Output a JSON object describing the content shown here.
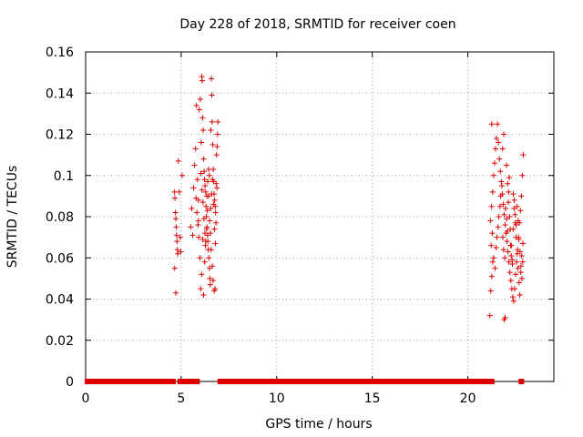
{
  "chart_data": {
    "type": "scatter",
    "title": "Day 228 of 2018, SRMTID for receiver coen",
    "xlabel": "GPS time / hours",
    "ylabel": "SRMTID / TECUs",
    "xlim": [
      0,
      24.5
    ],
    "ylim": [
      0,
      0.16
    ],
    "xticks": [
      0,
      5,
      10,
      15,
      20
    ],
    "xtick_labels": [
      "0",
      "5",
      "10",
      "15",
      "20"
    ],
    "yticks": [
      0,
      0.02,
      0.04,
      0.06,
      0.08,
      0.1,
      0.12,
      0.14,
      0.16
    ],
    "ytick_labels": [
      "0",
      "0.02",
      "0.04",
      "0.06",
      "0.08",
      "0.1",
      "0.12",
      "0.14",
      "0.16"
    ],
    "grid": true,
    "marker": "+",
    "color": "#dd0000",
    "series": [
      {
        "name": "SRMTID",
        "points": [
          [
            4.65,
            0.092
          ],
          [
            4.67,
            0.089
          ],
          [
            4.7,
            0.082
          ],
          [
            4.72,
            0.079
          ],
          [
            4.74,
            0.075
          ],
          [
            4.76,
            0.071
          ],
          [
            4.78,
            0.068
          ],
          [
            4.8,
            0.064
          ],
          [
            4.82,
            0.062
          ],
          [
            4.66,
            0.055
          ],
          [
            4.72,
            0.043
          ],
          [
            4.85,
            0.107
          ],
          [
            4.9,
            0.092
          ],
          [
            4.95,
            0.07
          ],
          [
            4.98,
            0.063
          ],
          [
            5.05,
            0.1
          ],
          [
            5.5,
            0.075
          ],
          [
            5.55,
            0.084
          ],
          [
            5.6,
            0.071
          ],
          [
            5.65,
            0.094
          ],
          [
            5.7,
            0.105
          ],
          [
            5.75,
            0.113
          ],
          [
            5.8,
            0.134
          ],
          [
            5.85,
            0.098
          ],
          [
            5.9,
            0.088
          ],
          [
            5.95,
            0.132
          ],
          [
            6.0,
            0.137
          ],
          [
            6.05,
            0.116
          ],
          [
            6.08,
            0.148
          ],
          [
            6.1,
            0.146
          ],
          [
            6.12,
            0.128
          ],
          [
            6.15,
            0.122
          ],
          [
            6.18,
            0.108
          ],
          [
            6.2,
            0.102
          ],
          [
            6.22,
            0.098
          ],
          [
            6.25,
            0.095
          ],
          [
            6.28,
            0.092
          ],
          [
            6.3,
            0.085
          ],
          [
            6.32,
            0.08
          ],
          [
            6.35,
            0.075
          ],
          [
            6.38,
            0.071
          ],
          [
            6.4,
            0.068
          ],
          [
            6.42,
            0.064
          ],
          [
            6.45,
            0.06
          ],
          [
            6.48,
            0.055
          ],
          [
            6.5,
            0.05
          ],
          [
            6.52,
            0.047
          ],
          [
            6.55,
            0.122
          ],
          [
            6.58,
            0.147
          ],
          [
            6.6,
            0.139
          ],
          [
            6.62,
            0.126
          ],
          [
            6.65,
            0.115
          ],
          [
            6.68,
            0.103
          ],
          [
            6.7,
            0.097
          ],
          [
            6.72,
            0.091
          ],
          [
            6.75,
            0.088
          ],
          [
            6.78,
            0.085
          ],
          [
            6.8,
            0.082
          ],
          [
            6.82,
            0.077
          ],
          [
            6.85,
            0.11
          ],
          [
            6.88,
            0.114
          ],
          [
            6.9,
            0.12
          ],
          [
            6.92,
            0.126
          ],
          [
            5.9,
            0.078
          ],
          [
            5.98,
            0.06
          ],
          [
            6.02,
            0.045
          ],
          [
            6.07,
            0.052
          ],
          [
            6.13,
            0.069
          ],
          [
            6.17,
            0.042
          ],
          [
            6.23,
            0.058
          ],
          [
            6.27,
            0.066
          ],
          [
            6.33,
            0.074
          ],
          [
            6.37,
            0.083
          ],
          [
            6.43,
            0.09
          ],
          [
            6.47,
            0.1
          ],
          [
            6.53,
            0.072
          ],
          [
            6.57,
            0.064
          ],
          [
            6.63,
            0.056
          ],
          [
            6.67,
            0.049
          ],
          [
            6.73,
            0.044
          ],
          [
            6.77,
            0.045
          ],
          [
            6.83,
            0.096
          ],
          [
            6.87,
            0.094
          ],
          [
            5.78,
            0.089
          ],
          [
            5.82,
            0.082
          ],
          [
            5.88,
            0.076
          ],
          [
            5.92,
            0.07
          ],
          [
            6.03,
            0.101
          ],
          [
            6.09,
            0.093
          ],
          [
            6.14,
            0.087
          ],
          [
            6.19,
            0.079
          ],
          [
            6.24,
            0.072
          ],
          [
            6.29,
            0.068
          ],
          [
            6.34,
            0.09
          ],
          [
            6.39,
            0.097
          ],
          [
            6.44,
            0.103
          ],
          [
            6.49,
            0.078
          ],
          [
            6.54,
            0.084
          ],
          [
            6.59,
            0.091
          ],
          [
            6.64,
            0.098
          ],
          [
            6.69,
            0.086
          ],
          [
            6.74,
            0.074
          ],
          [
            6.79,
            0.067
          ],
          [
            21.15,
            0.032
          ],
          [
            21.2,
            0.044
          ],
          [
            21.25,
            0.051
          ],
          [
            21.3,
            0.058
          ],
          [
            21.22,
            0.066
          ],
          [
            21.28,
            0.072
          ],
          [
            21.18,
            0.078
          ],
          [
            21.24,
            0.085
          ],
          [
            21.3,
            0.092
          ],
          [
            21.35,
            0.1
          ],
          [
            21.4,
            0.106
          ],
          [
            21.45,
            0.113
          ],
          [
            21.5,
            0.118
          ],
          [
            21.25,
            0.125
          ],
          [
            21.55,
            0.125
          ],
          [
            21.6,
            0.116
          ],
          [
            21.65,
            0.108
          ],
          [
            21.7,
            0.102
          ],
          [
            21.75,
            0.097
          ],
          [
            21.8,
            0.091
          ],
          [
            21.85,
            0.086
          ],
          [
            21.9,
            0.081
          ],
          [
            21.95,
            0.076
          ],
          [
            22.0,
            0.072
          ],
          [
            22.05,
            0.068
          ],
          [
            22.1,
            0.063
          ],
          [
            22.15,
            0.058
          ],
          [
            22.2,
            0.053
          ],
          [
            22.25,
            0.049
          ],
          [
            22.3,
            0.045
          ],
          [
            22.35,
            0.041
          ],
          [
            22.4,
            0.039
          ],
          [
            22.45,
            0.045
          ],
          [
            22.5,
            0.052
          ],
          [
            22.55,
            0.058
          ],
          [
            22.6,
            0.064
          ],
          [
            22.65,
            0.07
          ],
          [
            22.7,
            0.077
          ],
          [
            22.75,
            0.083
          ],
          [
            22.8,
            0.09
          ],
          [
            22.85,
            0.1
          ],
          [
            22.9,
            0.11
          ],
          [
            21.9,
            0.03
          ],
          [
            21.95,
            0.031
          ],
          [
            21.82,
            0.113
          ],
          [
            21.88,
            0.12
          ],
          [
            22.02,
            0.105
          ],
          [
            22.08,
            0.096
          ],
          [
            22.12,
            0.087
          ],
          [
            22.18,
            0.08
          ],
          [
            22.22,
            0.074
          ],
          [
            22.28,
            0.066
          ],
          [
            22.32,
            0.059
          ],
          [
            22.38,
            0.091
          ],
          [
            22.42,
            0.084
          ],
          [
            22.48,
            0.077
          ],
          [
            22.52,
            0.07
          ],
          [
            22.58,
            0.062
          ],
          [
            22.62,
            0.055
          ],
          [
            22.68,
            0.048
          ],
          [
            22.72,
            0.042
          ],
          [
            22.78,
            0.056
          ],
          [
            22.82,
            0.061
          ],
          [
            22.88,
            0.067
          ],
          [
            21.35,
            0.06
          ],
          [
            21.42,
            0.055
          ],
          [
            21.48,
            0.065
          ],
          [
            21.52,
            0.07
          ],
          [
            21.58,
            0.075
          ],
          [
            21.62,
            0.08
          ],
          [
            21.68,
            0.085
          ],
          [
            21.72,
            0.09
          ],
          [
            21.78,
            0.095
          ],
          [
            21.83,
            0.07
          ],
          [
            21.87,
            0.064
          ],
          [
            21.93,
            0.06
          ],
          [
            21.97,
            0.084
          ],
          [
            22.03,
            0.079
          ],
          [
            22.07,
            0.073
          ],
          [
            22.13,
            0.092
          ],
          [
            22.17,
            0.099
          ],
          [
            22.23,
            0.066
          ],
          [
            22.27,
            0.061
          ],
          [
            22.33,
            0.057
          ],
          [
            22.37,
            0.074
          ],
          [
            22.43,
            0.088
          ],
          [
            22.47,
            0.081
          ],
          [
            22.53,
            0.076
          ],
          [
            22.57,
            0.085
          ],
          [
            22.63,
            0.078
          ],
          [
            22.67,
            0.069
          ],
          [
            22.73,
            0.063
          ],
          [
            22.77,
            0.053
          ],
          [
            22.83,
            0.05
          ],
          [
            22.87,
            0.058
          ]
        ]
      }
    ],
    "zero_segments": [
      [
        0.05,
        4.62
      ],
      [
        4.9,
        5.65
      ],
      [
        5.72,
        5.88
      ],
      [
        7.0,
        10.7
      ],
      [
        10.82,
        21.3
      ],
      [
        22.75,
        22.85
      ]
    ]
  }
}
